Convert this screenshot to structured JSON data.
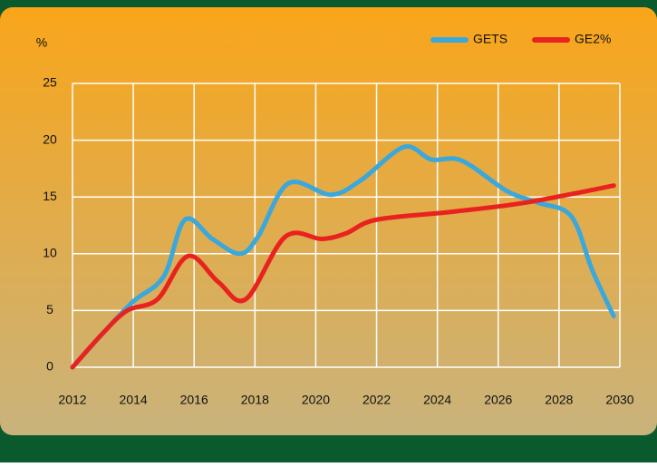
{
  "chart_data": {
    "type": "line",
    "y_label": "%",
    "series": [
      {
        "name": "GETS",
        "color": "#3aa8dc",
        "x": [
          2012,
          2013,
          2014,
          2015,
          2015.7,
          2016.6,
          2017.5,
          2018.1,
          2019.1,
          2020.5,
          2021.5,
          2022.9,
          2023.8,
          2024.8,
          2026.3,
          2027.3,
          2028.4,
          2029.1,
          2029.8
        ],
        "values": [
          0,
          3,
          5.8,
          8,
          13,
          11.3,
          10,
          11.5,
          16.2,
          15.2,
          16.5,
          19.4,
          18.3,
          18.2,
          15.5,
          14.5,
          13.3,
          8.5,
          4.5
        ]
      },
      {
        "name": "GE2%",
        "color": "#e8231f",
        "x": [
          2012,
          2013,
          2013.8,
          2014.8,
          2015.8,
          2016.8,
          2017.7,
          2019.0,
          2020.2,
          2021.0,
          2022.0,
          2024.5,
          2026.9,
          2029.8
        ],
        "values": [
          0,
          3,
          5,
          6,
          9.8,
          7.5,
          6,
          11.5,
          11.3,
          11.8,
          13,
          13.7,
          14.5,
          16
        ]
      }
    ],
    "xlim": [
      2012,
      2030
    ],
    "xticks": [
      2012,
      2014,
      2016,
      2018,
      2020,
      2022,
      2024,
      2026,
      2028,
      2030
    ],
    "ylim": [
      0,
      25
    ],
    "yticks": [
      0,
      5,
      10,
      15,
      20,
      25
    ],
    "grid": true
  }
}
